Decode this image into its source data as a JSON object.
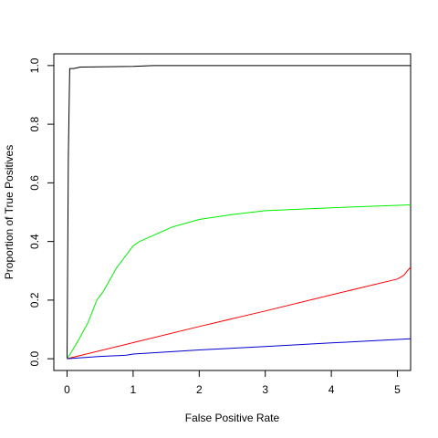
{
  "chart_data": {
    "type": "line",
    "title": "",
    "xlabel": "False Positive Rate",
    "ylabel": "Proportion of True Positives",
    "xlim": [
      -0.2,
      5.2
    ],
    "ylim": [
      -0.04,
      1.04
    ],
    "xticks": [
      0,
      1,
      2,
      3,
      4,
      5
    ],
    "xtick_labels": [
      "0",
      "1",
      "2",
      "3",
      "4",
      "5"
    ],
    "yticks": [
      0.0,
      0.2,
      0.4,
      0.6,
      0.8,
      1.0
    ],
    "ytick_labels": [
      "0.0",
      "0.2",
      "0.4",
      "0.6",
      "0.8",
      "1.0"
    ],
    "grid": false,
    "series": [
      {
        "color": "#000000",
        "points": [
          [
            0,
            0
          ],
          [
            0.02,
            0.69
          ],
          [
            0.04,
            0.99
          ],
          [
            0.1,
            0.99
          ],
          [
            0.2,
            0.995
          ],
          [
            1.0,
            0.997
          ],
          [
            1.3,
            1.0
          ],
          [
            5.2,
            1.0
          ]
        ]
      },
      {
        "color": "#00ee00",
        "points": [
          [
            0,
            0
          ],
          [
            0.1,
            0.035
          ],
          [
            0.2,
            0.075
          ],
          [
            0.32,
            0.125
          ],
          [
            0.45,
            0.2
          ],
          [
            0.55,
            0.23
          ],
          [
            0.75,
            0.31
          ],
          [
            1.0,
            0.385
          ],
          [
            1.1,
            0.4
          ],
          [
            1.3,
            0.42
          ],
          [
            1.6,
            0.45
          ],
          [
            2.0,
            0.475
          ],
          [
            2.5,
            0.492
          ],
          [
            3.0,
            0.505
          ],
          [
            4.0,
            0.515
          ],
          [
            5.2,
            0.525
          ]
        ]
      },
      {
        "color": "#ff0000",
        "points": [
          [
            0,
            0
          ],
          [
            1.0,
            0.055
          ],
          [
            2.0,
            0.11
          ],
          [
            3.0,
            0.163
          ],
          [
            4.0,
            0.218
          ],
          [
            5.0,
            0.272
          ],
          [
            5.1,
            0.285
          ],
          [
            5.15,
            0.3
          ],
          [
            5.2,
            0.312
          ]
        ]
      },
      {
        "color": "#0000cc",
        "points": [
          [
            0,
            0
          ],
          [
            0.5,
            0.008
          ],
          [
            0.9,
            0.012
          ],
          [
            1.0,
            0.016
          ],
          [
            2.0,
            0.03
          ],
          [
            3.0,
            0.042
          ],
          [
            4.0,
            0.054
          ],
          [
            5.2,
            0.068
          ]
        ]
      }
    ]
  }
}
